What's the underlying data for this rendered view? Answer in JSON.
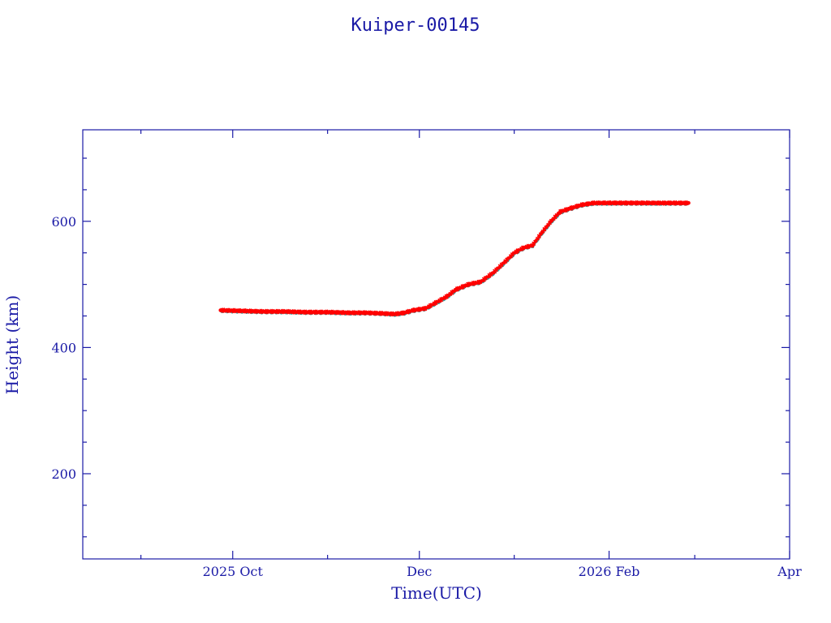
{
  "chart_data": {
    "type": "scatter",
    "title": "Kuiper-00145",
    "xlabel": "Time(UTC)",
    "ylabel": "Height (km)",
    "x_type": "date",
    "xlim": [
      "2025-08-13",
      "2026-04-01"
    ],
    "ylim": [
      65,
      745
    ],
    "x_ticks": [
      {
        "date": "2025-10-01",
        "label": "2025 Oct"
      },
      {
        "date": "2025-12-01",
        "label": "Dec"
      },
      {
        "date": "2026-02-01",
        "label": "2026 Feb"
      },
      {
        "date": "2026-04-01",
        "label": "Apr"
      }
    ],
    "y_ticks": [
      200,
      400,
      600
    ],
    "y_minor_step": 50,
    "grid": false,
    "colors": {
      "axes": "#1a1aa6",
      "series_primary": "#ff0000",
      "series_secondary": "#2aa8a8"
    },
    "series": [
      {
        "x": [
          "2025-09-27",
          "2025-10-04",
          "2025-10-11",
          "2025-10-18",
          "2025-10-25",
          "2025-11-01",
          "2025-11-08",
          "2025-11-14",
          "2025-11-19",
          "2025-11-23",
          "2025-11-26",
          "2025-11-29",
          "2025-12-03",
          "2025-12-06",
          "2025-12-10",
          "2025-12-13",
          "2025-12-17",
          "2025-12-21",
          "2025-12-25",
          "2025-12-29",
          "2026-01-01",
          "2026-01-04",
          "2026-01-07",
          "2026-01-10",
          "2026-01-13",
          "2026-01-16",
          "2026-01-19",
          "2026-01-23",
          "2026-01-27",
          "2026-02-01",
          "2026-02-07",
          "2026-02-14",
          "2026-02-21",
          "2026-02-27"
        ],
        "y": [
          459,
          458,
          457,
          457,
          456,
          456,
          455,
          455,
          454,
          453,
          455,
          459,
          462,
          470,
          481,
          492,
          500,
          504,
          518,
          536,
          550,
          558,
          562,
          582,
          600,
          615,
          620,
          626,
          629,
          629,
          629,
          629,
          629,
          629
        ]
      }
    ]
  }
}
